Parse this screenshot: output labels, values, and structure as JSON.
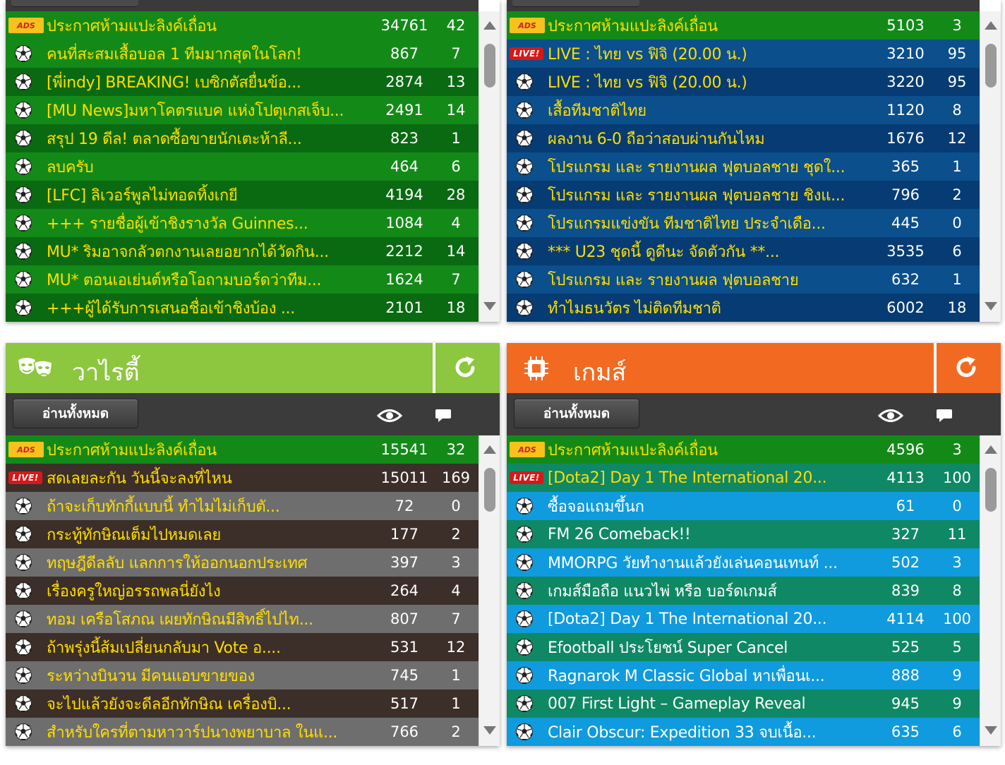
{
  "colors": {
    "yellow_text": "#ffde00",
    "white_text": "#ffffff",
    "green_a": "#138a18",
    "green_b": "#0a6a12",
    "blue_a": "#0b4f8c",
    "blue_b": "#063c73",
    "variety_header": "#8dc63f",
    "game_header": "#f26a21",
    "variety_row_a": "#3c2e29",
    "variety_row_b": "#6e6e6e",
    "game_row_a": "#0f8865",
    "game_row_b": "#0f9bdd"
  },
  "panels": {
    "football": {
      "rows": [
        {
          "kind": "ads",
          "title": "ประกาศห้ามแปะลิงค์เถื่อน",
          "views": "34761",
          "comments": "42"
        },
        {
          "kind": "ball",
          "title": "คนที่สะสมเสื้อบอล 1 ทีมมากสุดในโลก!",
          "views": "867",
          "comments": "7"
        },
        {
          "kind": "ball",
          "title": "[พี่indy] BREAKING! เบซิกตัสยื่นข้อ...",
          "views": "2874",
          "comments": "13"
        },
        {
          "kind": "ball",
          "title": "[MU News]มหาโคตรแบค แห่งโปตุเกสเจ็บ...",
          "views": "2491",
          "comments": "14"
        },
        {
          "kind": "ball",
          "title": "สรุป 19 ดีล! ตลาดซื้อขายนักเตะห้าลี...",
          "views": "823",
          "comments": "1"
        },
        {
          "kind": "ball",
          "title": "ลบครับ",
          "views": "464",
          "comments": "6"
        },
        {
          "kind": "ball",
          "title": "[LFC] ลิเวอร์พูลไม่ทอดทิ้งเกยี",
          "views": "4194",
          "comments": "28"
        },
        {
          "kind": "ball",
          "title": "+++ รายชื่อผู้เข้าชิงรางวัล Guinnes...",
          "views": "1084",
          "comments": "4"
        },
        {
          "kind": "ball",
          "title": "MU* ริมอาจกลัวตกงานเลยอยากได้วัดกิน...",
          "views": "2212",
          "comments": "14"
        },
        {
          "kind": "ball",
          "title": "MU* ตอนเอเย่นต์หรือโอถามบอร์ดว่าทีม...",
          "views": "1624",
          "comments": "7"
        },
        {
          "kind": "ball",
          "title": "+++ผู้ได้รับการเสนอชื่อเข้าชิงบ้อง ...",
          "views": "2101",
          "comments": "18"
        }
      ]
    },
    "thai": {
      "rows": [
        {
          "kind": "ads",
          "title": "ประกาศห้ามแปะลิงค์เถื่อน",
          "views": "5103",
          "comments": "3"
        },
        {
          "kind": "live",
          "title": "LIVE : ไทย vs ฟิจิ (20.00 น.)",
          "views": "3210",
          "comments": "95"
        },
        {
          "kind": "ball",
          "title": "LIVE : ไทย vs ฟิจิ (20.00 น.)",
          "views": "3220",
          "comments": "95"
        },
        {
          "kind": "ball",
          "title": "เสื้อทีมชาติไทย",
          "views": "1120",
          "comments": "8"
        },
        {
          "kind": "ball",
          "title": "ผลงาน 6-0 ถือว่าสอบผ่านกันไหม",
          "views": "1676",
          "comments": "12"
        },
        {
          "kind": "ball",
          "title": "โปรแกรม และ รายงานผล ฟุตบอลชาย ชุดใ...",
          "views": "365",
          "comments": "1"
        },
        {
          "kind": "ball",
          "title": "โปรแกรม และ รายงานผล ฟุตบอลชาย ชิงแ...",
          "views": "796",
          "comments": "2"
        },
        {
          "kind": "ball",
          "title": "โปรแกรมแข่งขัน ทีมชาติไทย ประจำเดือ...",
          "views": "445",
          "comments": "0"
        },
        {
          "kind": "ball",
          "title": "*** U23 ชุดนี้ ดูดีนะ จัดตัวกัน **...",
          "views": "3535",
          "comments": "6"
        },
        {
          "kind": "ball",
          "title": "โปรแกรม และ รายงานผล ฟุตบอลชาย",
          "views": "632",
          "comments": "1"
        },
        {
          "kind": "ball",
          "title": "ทำไมธนวัตร ไม่ติดทีมชาติ",
          "views": "6002",
          "comments": "18"
        }
      ]
    },
    "variety": {
      "title": "วาไรตี้",
      "read_all": "อ่านทั้งหมด",
      "rows": [
        {
          "kind": "ads",
          "title": "ประกาศห้ามแปะลิงค์เถื่อน",
          "views": "15541",
          "comments": "32"
        },
        {
          "kind": "live",
          "title": "สดเลยละกัน วันนี้จะลงที่ไหน",
          "views": "15011",
          "comments": "169"
        },
        {
          "kind": "ball",
          "title": "ถ้าจะเก็บทักกี้แบบนี้ ทำไมไม่เก็บตั...",
          "views": "72",
          "comments": "0"
        },
        {
          "kind": "ball",
          "title": "กระทู้ทักษิณเต็มไปหมดเลย",
          "views": "177",
          "comments": "2"
        },
        {
          "kind": "ball",
          "title": "ทฤษฎีดีลลับ แลกการให้ออกนอกประเทศ",
          "views": "397",
          "comments": "3"
        },
        {
          "kind": "ball",
          "title": "เรื่องครูใหญ่อรรถพลนี่ยังไง",
          "views": "264",
          "comments": "4"
        },
        {
          "kind": "ball",
          "title": "ทอม เครือโสภณ เผยทักษิณมีสิทธิ์ไปไท...",
          "views": "807",
          "comments": "7"
        },
        {
          "kind": "ball",
          "title": "ถ้าพรุ่งนี้ส้มเปลี่ยนกลับมา Vote อ....",
          "views": "531",
          "comments": "12"
        },
        {
          "kind": "ball",
          "title": "ระหว่างบินวน มีคนแอบขายของ",
          "views": "745",
          "comments": "1"
        },
        {
          "kind": "ball",
          "title": "จะไปแล้วยังจะดีลอีกทักษิณ เครื่องบิ...",
          "views": "517",
          "comments": "1"
        },
        {
          "kind": "ball",
          "title": "สำหรับใครที่ตามหาวาร์ปนางพยาบาล ในแ...",
          "views": "766",
          "comments": "2"
        }
      ]
    },
    "game": {
      "title": "เกมส์",
      "read_all": "อ่านทั้งหมด",
      "rows": [
        {
          "kind": "ads",
          "title": "ประกาศห้ามแปะลิงค์เถื่อน",
          "views": "4596",
          "comments": "3"
        },
        {
          "kind": "live",
          "title": "[Dota2] Day 1 The International 20...",
          "views": "4113",
          "comments": "100"
        },
        {
          "kind": "ball",
          "title": "ซื้อจอแถมขึ้นก",
          "views": "61",
          "comments": "0"
        },
        {
          "kind": "ball",
          "title": "FM 26 Comeback!!",
          "views": "327",
          "comments": "11"
        },
        {
          "kind": "ball",
          "title": "MMORPG วัยทำงานแล้วยังเล่นคอนเทนท์ ...",
          "views": "502",
          "comments": "3"
        },
        {
          "kind": "ball",
          "title": "เกมส์มือถือ แนวไพ่ หรือ บอร์ดเกมส์",
          "views": "839",
          "comments": "8"
        },
        {
          "kind": "ball",
          "title": "[Dota2] Day 1 The International 20...",
          "views": "4114",
          "comments": "100"
        },
        {
          "kind": "ball",
          "title": "Efootball ประโยชน์ Super Cancel",
          "views": "525",
          "comments": "5"
        },
        {
          "kind": "ball",
          "title": "Ragnarok M Classic Global หาเพื่อนเ...",
          "views": "888",
          "comments": "9"
        },
        {
          "kind": "ball",
          "title": "007 First Light – Gameplay Reveal",
          "views": "945",
          "comments": "9"
        },
        {
          "kind": "ball",
          "title": "Clair Obscur: Expedition 33 จบเนื้อ...",
          "views": "635",
          "comments": "6"
        }
      ]
    }
  },
  "badges": {
    "ads": "ADS",
    "live": "LIVE!"
  },
  "icons": {
    "ads": "ads-badge-icon",
    "live": "live-badge-icon",
    "ball": "soccer-ball-icon",
    "variety": "theater-masks-icon",
    "game": "cpu-chip-icon",
    "refresh": "refresh-icon",
    "views": "eye-icon",
    "comments": "comment-icon"
  }
}
